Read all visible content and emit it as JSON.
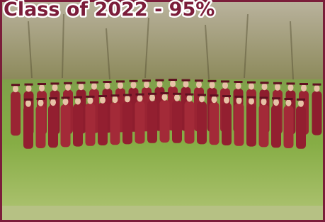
{
  "title": "Class of 2022 - 95%"
}
